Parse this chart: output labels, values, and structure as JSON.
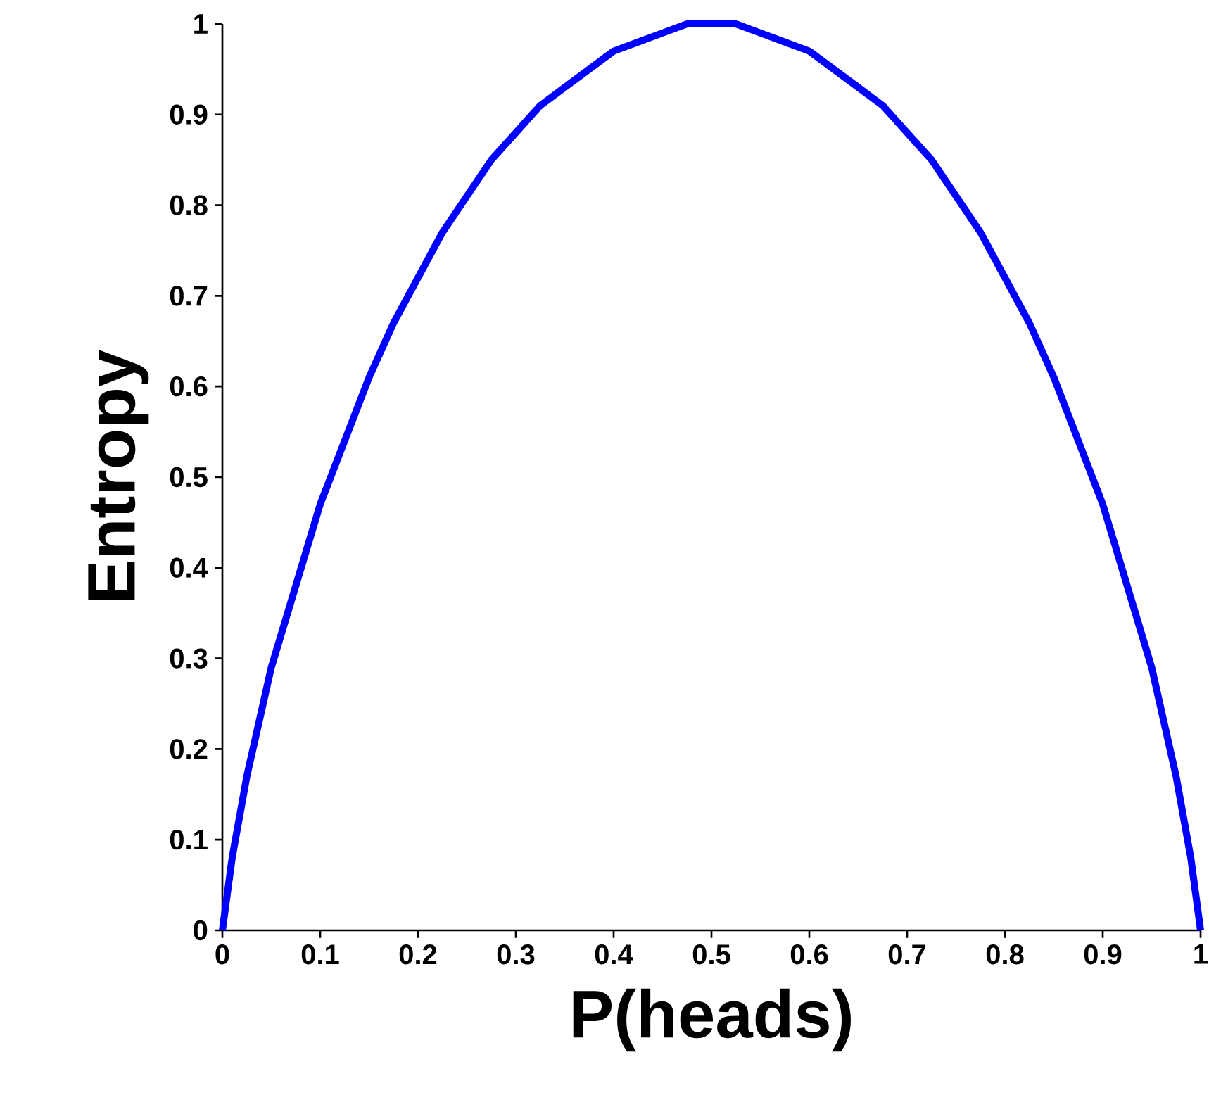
{
  "chart_data": {
    "type": "line",
    "xlabel": "P(heads)",
    "ylabel": "Entropy",
    "x": [
      0,
      0.01,
      0.025,
      0.05,
      0.075,
      0.1,
      0.125,
      0.15,
      0.175,
      0.2,
      0.225,
      0.25,
      0.275,
      0.3,
      0.325,
      0.35,
      0.375,
      0.4,
      0.425,
      0.45,
      0.475,
      0.5,
      0.525,
      0.55,
      0.575,
      0.6,
      0.625,
      0.65,
      0.675,
      0.7,
      0.725,
      0.75,
      0.775,
      0.8,
      0.825,
      0.85,
      0.875,
      0.9,
      0.925,
      0.95,
      0.975,
      0.99,
      1
    ],
    "series": [
      {
        "color": "#0000ff",
        "values": [
          0,
          0.08,
          0.17,
          0.29,
          0.38,
          0.47,
          0.54,
          0.61,
          0.67,
          0.72,
          0.77,
          0.81,
          0.85,
          0.88,
          0.91,
          0.93,
          0.95,
          0.97,
          0.98,
          0.99,
          1.0,
          1.0,
          1.0,
          0.99,
          0.98,
          0.97,
          0.95,
          0.93,
          0.91,
          0.88,
          0.85,
          0.81,
          0.77,
          0.72,
          0.67,
          0.61,
          0.54,
          0.47,
          0.38,
          0.29,
          0.17,
          0.08,
          0
        ]
      }
    ],
    "xlim": [
      0,
      1
    ],
    "ylim": [
      0,
      1
    ],
    "xticks": [
      0,
      0.1,
      0.2,
      0.3,
      0.4,
      0.5,
      0.6,
      0.7,
      0.8,
      0.9,
      1
    ],
    "yticks": [
      0,
      0.1,
      0.2,
      0.3,
      0.4,
      0.5,
      0.6,
      0.7,
      0.8,
      0.9,
      1
    ],
    "marker": "none",
    "line_style": "solid"
  }
}
